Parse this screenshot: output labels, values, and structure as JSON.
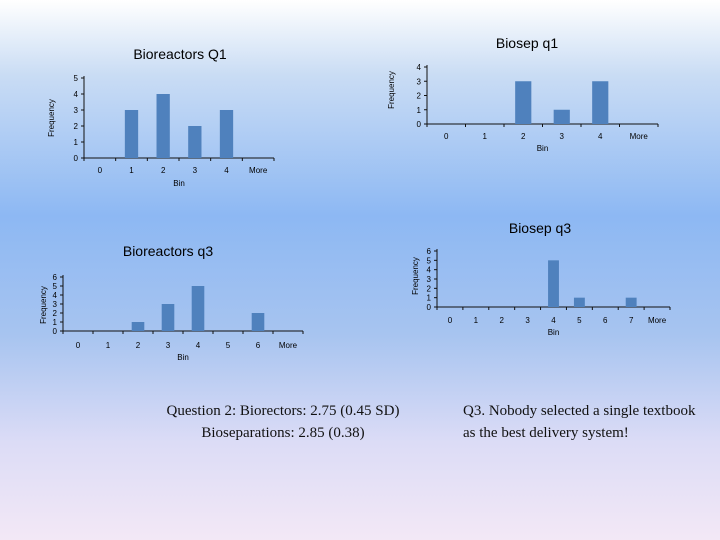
{
  "chart_data": [
    {
      "id": "bioreactors_q1",
      "type": "bar",
      "title": "Bioreactors Q1",
      "xlabel": "Bin",
      "ylabel": "Frequency",
      "categories": [
        "0",
        "1",
        "2",
        "3",
        "4",
        "More"
      ],
      "values": [
        0,
        3,
        4,
        2,
        3,
        0
      ],
      "ylim": [
        0,
        5
      ],
      "yticks": [
        0,
        1,
        2,
        3,
        4,
        5
      ]
    },
    {
      "id": "biosep_q1",
      "type": "bar",
      "title": "Biosep q1",
      "xlabel": "Bin",
      "ylabel": "Frequency",
      "categories": [
        "0",
        "1",
        "2",
        "3",
        "4",
        "More"
      ],
      "values": [
        0,
        0,
        3,
        1,
        3,
        0
      ],
      "ylim": [
        0,
        4
      ],
      "yticks": [
        0,
        1,
        2,
        3,
        4
      ]
    },
    {
      "id": "bioreactors_q3",
      "type": "bar",
      "title": "Bioreactors q3",
      "xlabel": "Bin",
      "ylabel": "Frequency",
      "categories": [
        "0",
        "1",
        "2",
        "3",
        "4",
        "5",
        "6",
        "More"
      ],
      "values": [
        0,
        0,
        1,
        3,
        5,
        0,
        2,
        0
      ],
      "ylim": [
        0,
        6
      ],
      "yticks": [
        0,
        1,
        2,
        3,
        4,
        5,
        6
      ]
    },
    {
      "id": "biosep_q3",
      "type": "bar",
      "title": "Biosep q3",
      "xlabel": "Bin",
      "ylabel": "Frequency",
      "categories": [
        "0",
        "1",
        "2",
        "3",
        "4",
        "5",
        "6",
        "7",
        "More"
      ],
      "values": [
        0,
        0,
        0,
        0,
        5,
        1,
        0,
        1,
        0
      ],
      "ylim": [
        0,
        6
      ],
      "yticks": [
        0,
        1,
        2,
        3,
        4,
        5,
        6
      ]
    }
  ],
  "notes": {
    "q2_line1": "Question 2:  Biorectors: 2.75 (0.45 SD)",
    "q2_line2": "Bioseparations: 2.85 (0.38)",
    "q3_text": "Q3.  Nobody selected a single textbook as the best delivery system!"
  }
}
